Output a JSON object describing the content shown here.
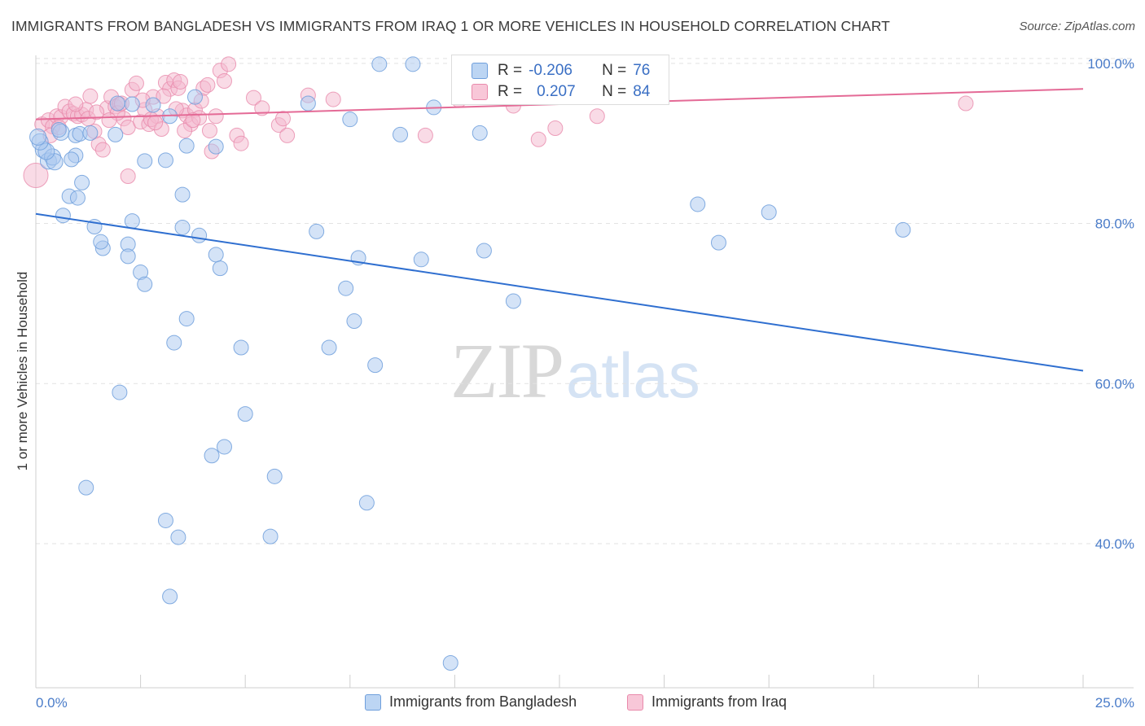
{
  "title": "IMMIGRANTS FROM BANGLADESH VS IMMIGRANTS FROM IRAQ 1 OR MORE VEHICLES IN HOUSEHOLD CORRELATION CHART",
  "source": "Source: ZipAtlas.com",
  "watermark": {
    "zip": "ZIP",
    "atlas": "atlas"
  },
  "colors": {
    "blue_fill": "#a9c8ef",
    "blue_stroke": "#6f9fdc",
    "blue_line": "#2f6fd0",
    "pink_fill": "#f4b8cd",
    "pink_stroke": "#e98aab",
    "pink_line": "#e46a96",
    "tick_text": "#4a7cc9",
    "grid": "#e2e2e2"
  },
  "stats": {
    "rows": [
      {
        "r_label": "R =",
        "r_value": "-0.206",
        "n_label": "N =",
        "n_value": "76"
      },
      {
        "r_label": "R =",
        "r_value": "0.207",
        "n_label": "N =",
        "n_value": "84"
      }
    ]
  },
  "chart_data": {
    "type": "scatter",
    "title": "IMMIGRANTS FROM BANGLADESH VS IMMIGRANTS FROM IRAQ 1 OR MORE VEHICLES IN HOUSEHOLD CORRELATION CHART",
    "xlabel": "",
    "ylabel": "1 or more Vehicles in Household",
    "xlim": [
      0,
      25
    ],
    "ylim": [
      22,
      101
    ],
    "x_tick_labels": [
      "0.0%",
      "25.0%"
    ],
    "y_ticks": [
      40,
      60,
      80,
      100
    ],
    "y_tick_labels": [
      "40.0%",
      "60.0%",
      "80.0%",
      "100.0%"
    ],
    "legend": [
      "Immigrants from Bangladesh",
      "Immigrants from Iraq"
    ],
    "series": [
      {
        "name": "Immigrants from Bangladesh",
        "trend": {
          "x": [
            0,
            25
          ],
          "y": [
            81.2,
            61.6
          ]
        },
        "points": [
          [
            0.18,
            89.2
          ],
          [
            0.3,
            87.8
          ],
          [
            0.4,
            88.3
          ],
          [
            0.45,
            87.7
          ],
          [
            0.6,
            91.4
          ],
          [
            0.25,
            89.0
          ],
          [
            0.1,
            90.2
          ],
          [
            0.05,
            90.8
          ],
          [
            0.95,
            91.0
          ],
          [
            1.05,
            91.2
          ],
          [
            0.65,
            81.0
          ],
          [
            0.8,
            83.4
          ],
          [
            1.0,
            83.2
          ],
          [
            1.1,
            85.1
          ],
          [
            0.95,
            88.5
          ],
          [
            1.95,
            95.0
          ],
          [
            2.3,
            94.9
          ],
          [
            2.8,
            94.8
          ],
          [
            3.2,
            93.4
          ],
          [
            3.8,
            95.8
          ],
          [
            6.5,
            95.0
          ],
          [
            7.5,
            93.0
          ],
          [
            8.2,
            99.9
          ],
          [
            9.0,
            99.9
          ],
          [
            9.5,
            94.5
          ],
          [
            4.3,
            89.6
          ],
          [
            3.6,
            89.7
          ],
          [
            3.1,
            87.9
          ],
          [
            8.7,
            91.1
          ],
          [
            10.6,
            91.3
          ],
          [
            1.4,
            79.6
          ],
          [
            1.6,
            76.9
          ],
          [
            2.3,
            80.3
          ],
          [
            1.55,
            77.7
          ],
          [
            2.2,
            77.4
          ],
          [
            2.2,
            75.9
          ],
          [
            3.5,
            79.5
          ],
          [
            3.9,
            78.5
          ],
          [
            3.5,
            83.6
          ],
          [
            6.7,
            79.0
          ],
          [
            4.3,
            76.1
          ],
          [
            4.4,
            74.4
          ],
          [
            2.5,
            73.9
          ],
          [
            2.6,
            72.4
          ],
          [
            3.6,
            68.1
          ],
          [
            3.3,
            65.1
          ],
          [
            7.7,
            75.7
          ],
          [
            7.6,
            67.8
          ],
          [
            7.4,
            71.9
          ],
          [
            9.2,
            75.5
          ],
          [
            10.7,
            76.6
          ],
          [
            11.4,
            70.3
          ],
          [
            15.8,
            82.4
          ],
          [
            16.3,
            77.6
          ],
          [
            17.5,
            81.4
          ],
          [
            20.7,
            79.2
          ],
          [
            7.0,
            64.5
          ],
          [
            8.1,
            62.3
          ],
          [
            4.9,
            64.5
          ],
          [
            2.0,
            58.9
          ],
          [
            5.0,
            56.2
          ],
          [
            4.5,
            52.1
          ],
          [
            4.2,
            51.0
          ],
          [
            5.7,
            48.4
          ],
          [
            1.2,
            47.0
          ],
          [
            3.1,
            42.9
          ],
          [
            3.4,
            40.8
          ],
          [
            5.6,
            40.9
          ],
          [
            7.9,
            45.1
          ],
          [
            3.2,
            33.4
          ],
          [
            9.9,
            25.1
          ],
          [
            1.3,
            91.3
          ],
          [
            1.9,
            91.1
          ],
          [
            0.55,
            91.7
          ],
          [
            2.6,
            87.8
          ],
          [
            0.85,
            88.0
          ]
        ]
      },
      {
        "name": "Immigrants from Iraq",
        "trend": {
          "x": [
            0,
            25
          ],
          "y": [
            93.0,
            96.8
          ]
        },
        "points": [
          [
            0.0,
            86.0
          ],
          [
            0.15,
            92.4
          ],
          [
            0.3,
            92.9
          ],
          [
            0.4,
            92.1
          ],
          [
            0.5,
            93.4
          ],
          [
            0.6,
            93.3
          ],
          [
            0.7,
            94.6
          ],
          [
            0.8,
            94.0
          ],
          [
            0.9,
            93.7
          ],
          [
            1.0,
            93.4
          ],
          [
            1.1,
            93.6
          ],
          [
            1.2,
            94.2
          ],
          [
            1.3,
            95.9
          ],
          [
            1.4,
            91.5
          ],
          [
            1.5,
            89.9
          ],
          [
            1.6,
            89.2
          ],
          [
            1.7,
            94.4
          ],
          [
            1.8,
            95.8
          ],
          [
            1.9,
            94.6
          ],
          [
            2.0,
            94.9
          ],
          [
            2.1,
            93.1
          ],
          [
            2.2,
            92.0
          ],
          [
            2.3,
            96.7
          ],
          [
            2.4,
            97.5
          ],
          [
            2.5,
            92.7
          ],
          [
            2.6,
            94.2
          ],
          [
            2.7,
            92.4
          ],
          [
            2.8,
            95.8
          ],
          [
            2.9,
            93.4
          ],
          [
            3.0,
            91.8
          ],
          [
            3.1,
            97.6
          ],
          [
            3.2,
            96.8
          ],
          [
            3.3,
            97.9
          ],
          [
            3.4,
            96.9
          ],
          [
            3.5,
            94.1
          ],
          [
            3.6,
            93.5
          ],
          [
            3.7,
            92.4
          ],
          [
            3.8,
            94.2
          ],
          [
            3.9,
            93.2
          ],
          [
            4.0,
            96.9
          ],
          [
            4.1,
            97.3
          ],
          [
            4.2,
            89.0
          ],
          [
            4.3,
            93.4
          ],
          [
            4.4,
            99.1
          ],
          [
            4.5,
            97.8
          ],
          [
            4.6,
            99.9
          ],
          [
            4.8,
            91.0
          ],
          [
            4.9,
            90.0
          ],
          [
            5.2,
            95.7
          ],
          [
            5.4,
            94.4
          ],
          [
            5.8,
            92.3
          ],
          [
            5.9,
            93.1
          ],
          [
            6.0,
            91.0
          ],
          [
            6.5,
            96.0
          ],
          [
            7.1,
            95.5
          ],
          [
            10.1,
            95.4
          ],
          [
            10.6,
            96.0
          ],
          [
            11.4,
            94.7
          ],
          [
            12.0,
            90.5
          ],
          [
            12.4,
            91.9
          ],
          [
            13.4,
            93.4
          ],
          [
            14.2,
            99.9
          ],
          [
            22.2,
            95.0
          ],
          [
            0.35,
            91.0
          ],
          [
            0.55,
            92.0
          ],
          [
            1.25,
            93.1
          ],
          [
            1.45,
            93.9
          ],
          [
            1.95,
            93.8
          ],
          [
            2.05,
            95.0
          ],
          [
            2.55,
            95.4
          ],
          [
            2.75,
            93.0
          ],
          [
            3.05,
            95.9
          ],
          [
            3.35,
            94.3
          ],
          [
            3.55,
            91.6
          ],
          [
            3.75,
            92.9
          ],
          [
            3.95,
            95.3
          ],
          [
            4.15,
            91.6
          ],
          [
            2.2,
            85.9
          ],
          [
            9.3,
            91.0
          ],
          [
            11.0,
            97.2
          ],
          [
            3.45,
            97.7
          ],
          [
            2.85,
            92.6
          ],
          [
            1.75,
            92.9
          ],
          [
            0.95,
            94.9
          ]
        ]
      }
    ]
  }
}
